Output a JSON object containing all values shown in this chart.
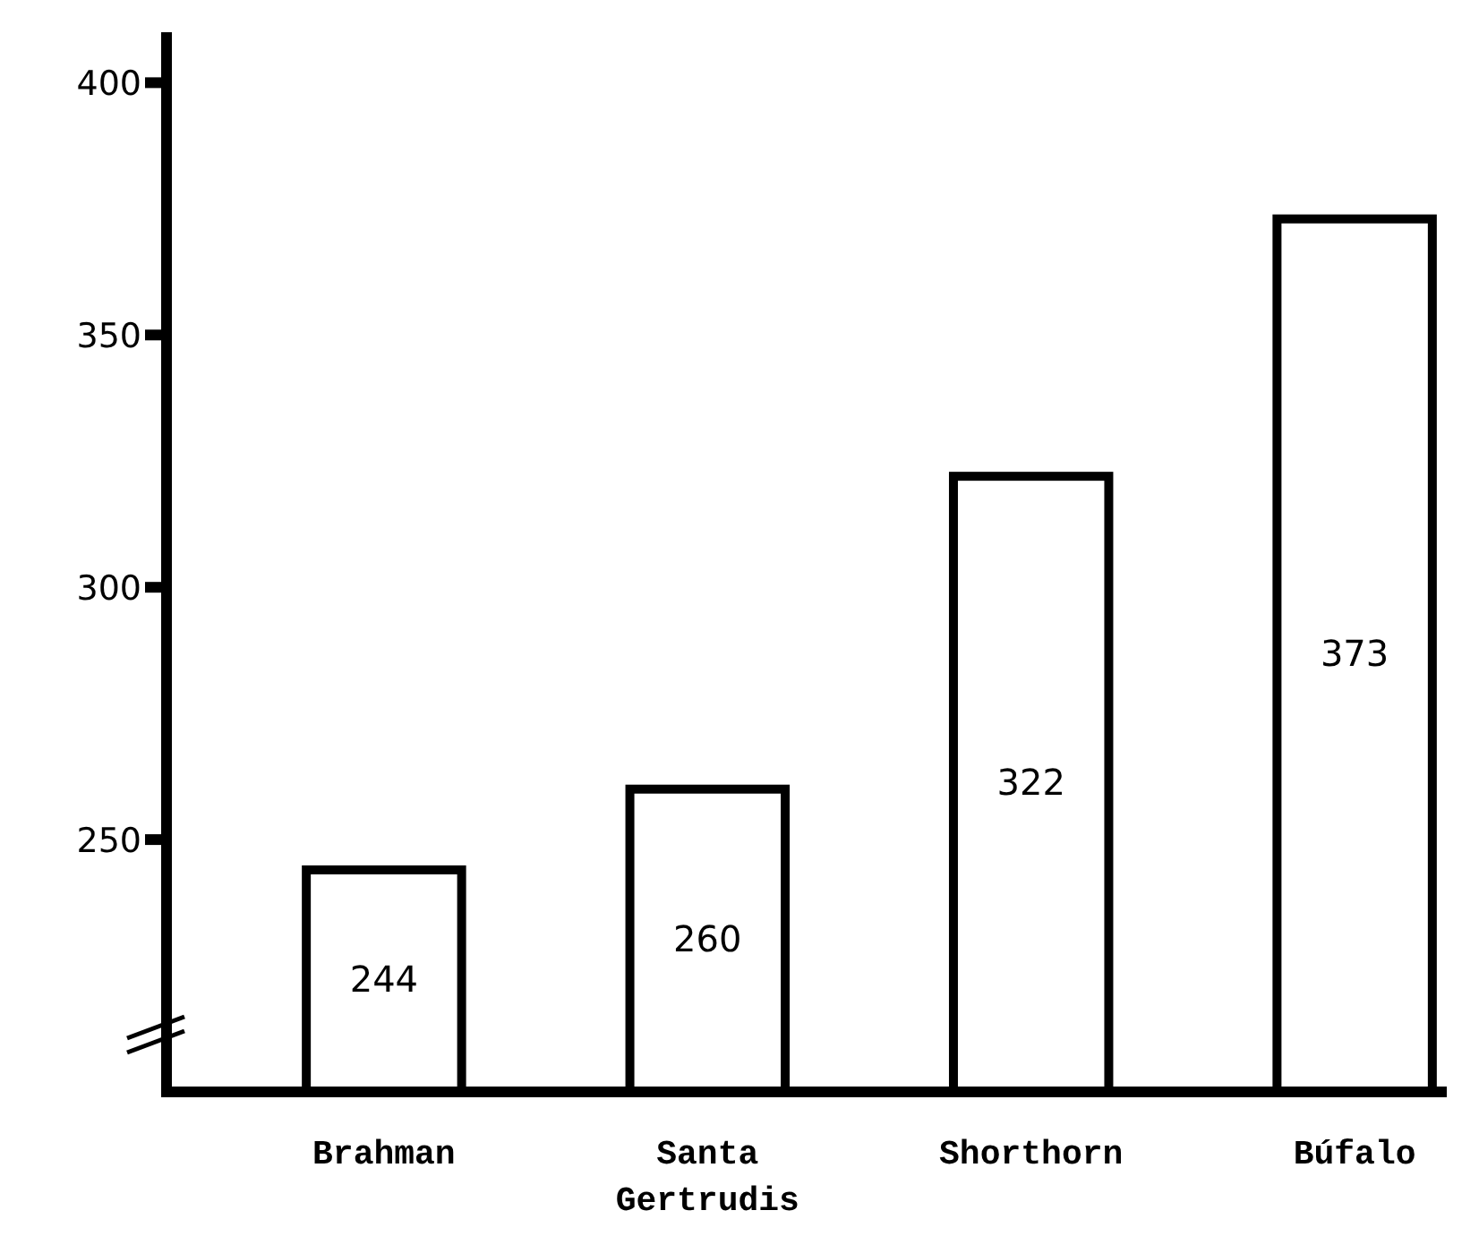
{
  "chart_data": {
    "type": "bar",
    "categories": [
      "Brahman",
      "Santa Gertrudis",
      "Shorthorn",
      "Búfalo"
    ],
    "values": [
      244,
      260,
      322,
      373
    ],
    "color": "#ffffff",
    "data_labels": true,
    "grid": false,
    "ylim": [
      200,
      410
    ],
    "yticks": [
      250,
      300,
      350,
      400
    ]
  }
}
